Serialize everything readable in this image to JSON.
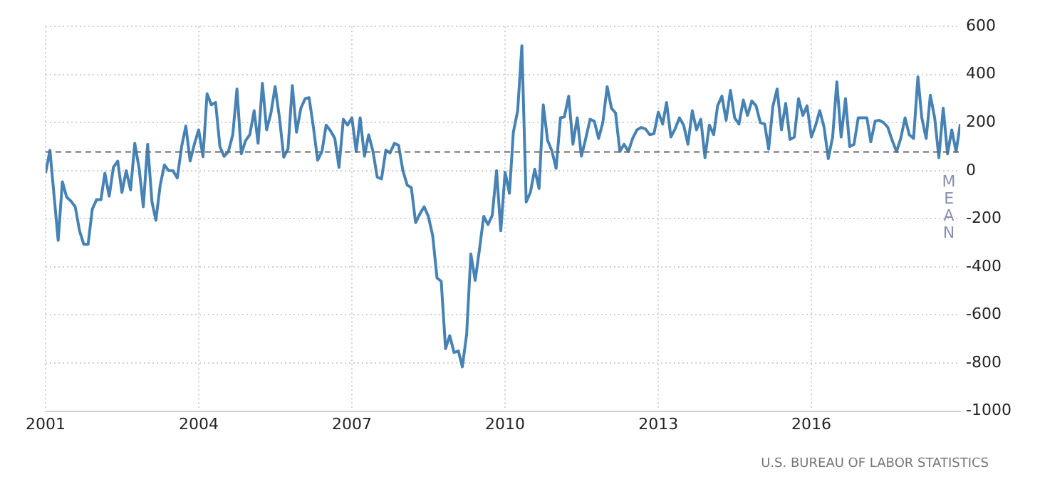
{
  "chart_data": {
    "type": "line",
    "x": [
      "2001-01",
      "2001-02",
      "2001-04",
      "2001-05",
      "2001-06",
      "2001-07",
      "2001-08",
      "2001-09",
      "2001-10",
      "2001-11",
      "2001-12",
      "2002-01",
      "2002-02",
      "2002-03",
      "2002-04",
      "2002-05",
      "2002-06",
      "2002-07",
      "2002-08",
      "2002-09",
      "2002-10",
      "2002-11",
      "2002-12",
      "2003-01",
      "2003-02",
      "2003-03",
      "2003-04",
      "2003-05",
      "2003-06",
      "2003-07",
      "2003-08",
      "2003-09",
      "2003-10",
      "2003-11",
      "2003-12",
      "2004-01",
      "2004-02",
      "2004-03",
      "2004-04",
      "2004-05",
      "2004-06",
      "2004-07",
      "2004-08",
      "2004-09",
      "2004-10",
      "2004-11",
      "2004-12",
      "2005-01",
      "2005-02",
      "2005-03",
      "2005-04",
      "2005-05",
      "2005-06",
      "2005-07",
      "2005-08",
      "2005-09",
      "2005-10",
      "2005-11",
      "2005-12",
      "2006-01",
      "2006-02",
      "2006-03",
      "2006-04",
      "2006-05",
      "2006-06",
      "2006-07",
      "2006-08",
      "2006-09",
      "2006-10",
      "2006-11",
      "2006-12",
      "2007-01",
      "2007-02",
      "2007-03",
      "2007-04",
      "2007-05",
      "2007-06",
      "2007-07",
      "2007-08",
      "2007-09",
      "2007-10",
      "2007-11",
      "2007-12",
      "2008-01",
      "2008-02",
      "2008-03",
      "2008-04",
      "2008-05",
      "2008-06",
      "2008-07",
      "2008-08",
      "2008-09",
      "2008-10",
      "2008-11",
      "2008-12",
      "2009-01",
      "2009-02",
      "2009-03",
      "2009-04",
      "2009-05",
      "2009-06",
      "2009-07",
      "2009-08",
      "2009-09",
      "2009-10",
      "2009-11",
      "2009-12",
      "2010-01",
      "2010-02",
      "2010-03",
      "2010-04",
      "2010-05",
      "2010-06",
      "2010-07",
      "2010-08",
      "2010-09",
      "2010-10",
      "2010-11",
      "2010-12",
      "2011-01",
      "2011-02",
      "2011-03",
      "2011-04",
      "2011-05",
      "2011-06",
      "2011-07",
      "2011-08",
      "2011-09",
      "2011-10",
      "2011-11",
      "2011-12",
      "2012-01",
      "2012-02",
      "2012-03",
      "2012-04",
      "2012-05",
      "2012-06",
      "2012-07",
      "2012-08",
      "2012-09",
      "2012-10",
      "2012-11",
      "2012-12",
      "2013-01",
      "2013-02",
      "2013-03",
      "2013-04",
      "2013-05",
      "2013-06",
      "2013-07",
      "2013-08",
      "2013-09",
      "2013-10",
      "2013-11",
      "2013-12",
      "2014-01",
      "2014-02",
      "2014-03",
      "2014-04",
      "2014-05",
      "2014-06",
      "2014-07",
      "2014-08",
      "2014-09",
      "2014-10",
      "2014-11",
      "2014-12",
      "2015-01",
      "2015-02",
      "2015-03",
      "2015-04",
      "2015-05",
      "2015-06",
      "2015-07",
      "2015-08",
      "2015-09",
      "2015-10",
      "2015-11",
      "2015-12",
      "2016-01",
      "2016-02",
      "2016-03",
      "2016-04",
      "2016-05",
      "2016-06",
      "2016-07",
      "2016-08",
      "2016-09",
      "2016-10",
      "2016-11",
      "2016-12",
      "2017-01",
      "2017-02",
      "2017-03",
      "2017-04",
      "2017-05",
      "2017-06",
      "2017-07",
      "2017-08",
      "2017-09",
      "2017-10",
      "2017-11",
      "2017-12",
      "2018-01",
      "2018-02",
      "2018-03",
      "2018-04",
      "2018-05",
      "2018-06",
      "2018-07",
      "2018-08",
      "2018-09",
      "2018-10",
      "2018-11",
      "2018-12"
    ],
    "series": [
      {
        "color": "#4682b4",
        "values": [
          -10,
          85,
          -290,
          -46,
          -110,
          -126,
          -150,
          -250,
          -306,
          -306,
          -160,
          -120,
          -120,
          -10,
          -106,
          14,
          40,
          -90,
          0,
          -80,
          114,
          10,
          -150,
          110,
          -130,
          -206,
          -60,
          24,
          0,
          0,
          -30,
          100,
          186,
          40,
          110,
          170,
          58,
          320,
          274,
          284,
          100,
          60,
          80,
          150,
          340,
          70,
          124,
          150,
          250,
          114,
          364,
          170,
          240,
          350,
          220,
          56,
          90,
          354,
          160,
          260,
          300,
          304,
          180,
          44,
          80,
          190,
          166,
          134,
          14,
          214,
          190,
          220,
          80,
          220,
          60,
          150,
          80,
          -26,
          -34,
          86,
          74,
          114,
          106,
          0,
          -60,
          -70,
          -216,
          -180,
          -150,
          -190,
          -270,
          -446,
          -460,
          -740,
          -686,
          -756,
          -750,
          -816,
          -680,
          -346,
          -456,
          -330,
          -190,
          -224,
          -186,
          0,
          -250,
          -6,
          -94,
          160,
          250,
          520,
          -130,
          -90,
          6,
          -74,
          274,
          126,
          84,
          10,
          220,
          224,
          310,
          110,
          220,
          60,
          134,
          214,
          206,
          134,
          200,
          350,
          260,
          240,
          80,
          110,
          80,
          134,
          170,
          180,
          174,
          150,
          154,
          244,
          194,
          284,
          140,
          174,
          220,
          190,
          110,
          250,
          170,
          214,
          54,
          190,
          150,
          270,
          310,
          210,
          334,
          220,
          194,
          294,
          230,
          290,
          270,
          200,
          194,
          90,
          270,
          340,
          170,
          280,
          130,
          140,
          300,
          230,
          270,
          140,
          190,
          250,
          180,
          50,
          140,
          370,
          140,
          300,
          100,
          110,
          220,
          220,
          220,
          120,
          206,
          210,
          200,
          180,
          126,
          80,
          134,
          220,
          150,
          134,
          390,
          220,
          134,
          314,
          220,
          54,
          260,
          70,
          170,
          80,
          194
        ]
      }
    ],
    "xlim": [
      "2001-01",
      "2018-12"
    ],
    "xticks": [
      "2001",
      "2004",
      "2007",
      "2010",
      "2013",
      "2016"
    ],
    "ylim": [
      -1000,
      600
    ],
    "yticks": [
      -1000,
      -800,
      -600,
      -400,
      -200,
      0,
      200,
      400,
      600
    ],
    "ref_lines": [
      {
        "axis": "y",
        "value": 78,
        "label": "MEAN",
        "color": "#666666",
        "line_style": "dashed"
      }
    ],
    "grid": true,
    "legend": false,
    "marker": "none",
    "line_style": "solid",
    "annotations": [
      "U.S. BUREAU OF LABOR STATISTICS"
    ]
  }
}
